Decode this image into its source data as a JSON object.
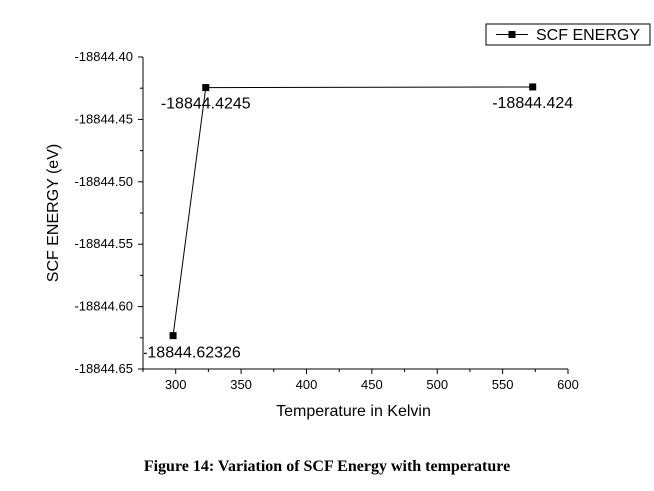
{
  "figure_caption": "Figure 14: Variation of SCF Energy with temperature",
  "chart_data": {
    "type": "line",
    "xlabel": "Temperature in Kelvin",
    "ylabel": "SCF ENERGY (eV)",
    "xlim": [
      275,
      600
    ],
    "ylim": [
      -18844.65,
      -18844.4
    ],
    "xticks": [
      "300",
      "350",
      "400",
      "450",
      "500",
      "550",
      "600"
    ],
    "yticks": [
      "-18844.40",
      "-18844.45",
      "-18844.50",
      "-18844.55",
      "-18844.60",
      "-18844.65"
    ],
    "legend_position": "top-right",
    "grid": false,
    "series": [
      {
        "name": "SCF ENERGY",
        "color": "#000000",
        "marker": "square",
        "x": [
          298,
          323,
          573
        ],
        "y": [
          -18844.62326,
          -18844.4245,
          -18844.424
        ],
        "labels": [
          "-18844.62326",
          "-18844.4245",
          "-18844.424"
        ]
      }
    ]
  }
}
